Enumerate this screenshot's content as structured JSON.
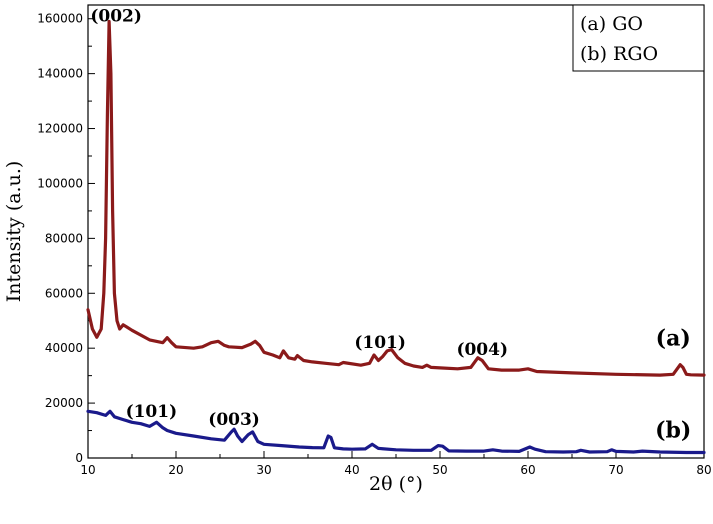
{
  "chart_data": {
    "type": "line",
    "xlabel": "2θ (°)",
    "ylabel": "Intensity (a.u.)",
    "xlim": [
      10,
      80
    ],
    "ylim": [
      0,
      165000
    ],
    "xticks": [
      10,
      20,
      30,
      40,
      50,
      60,
      70,
      80
    ],
    "yticks": [
      0,
      20000,
      40000,
      60000,
      80000,
      100000,
      120000,
      140000,
      160000
    ],
    "grid": false,
    "legend_position": "top-right",
    "legend": [
      "(a) GO",
      "(b) RGO"
    ],
    "series": [
      {
        "name": "(a) GO",
        "color": "#8b1a1a",
        "x": [
          10,
          10.5,
          11,
          11.5,
          11.8,
          12.0,
          12.2,
          12.4,
          12.6,
          12.8,
          13.0,
          13.3,
          13.6,
          14,
          15,
          17,
          18.5,
          19,
          19.5,
          20,
          22,
          23,
          24,
          24.8,
          25.5,
          26,
          27.5,
          28.5,
          29,
          29.5,
          30,
          31,
          31.8,
          32.2,
          32.8,
          33.5,
          33.8,
          34.5,
          35.5,
          37,
          38.5,
          39,
          41,
          42,
          42.5,
          43,
          43.5,
          44,
          44.5,
          45.2,
          46,
          47,
          48,
          48.5,
          49,
          50,
          52,
          53.5,
          54.3,
          54.8,
          55.5,
          57,
          59,
          60,
          61,
          65,
          70,
          75,
          76.5,
          77.3,
          77.6,
          78,
          78.5,
          80
        ],
        "y": [
          54000,
          47000,
          44000,
          47000,
          60000,
          80000,
          125000,
          159000,
          140000,
          90000,
          60000,
          50000,
          47000,
          48500,
          46500,
          43000,
          42000,
          43800,
          42000,
          40500,
          40000,
          40500,
          42000,
          42500,
          41000,
          40500,
          40200,
          41500,
          42500,
          41000,
          38500,
          37500,
          36500,
          39000,
          36500,
          36000,
          37300,
          35500,
          35000,
          34500,
          34000,
          34800,
          33800,
          34500,
          37500,
          35500,
          37000,
          39000,
          39500,
          36500,
          34500,
          33500,
          33000,
          33800,
          33000,
          32800,
          32500,
          33000,
          36500,
          35500,
          32500,
          32000,
          32000,
          32500,
          31500,
          31000,
          30500,
          30200,
          30500,
          34000,
          33000,
          30500,
          30300,
          30200
        ]
      },
      {
        "name": "(b) RGO",
        "color": "#1a1a8b",
        "x": [
          10,
          11,
          12,
          12.5,
          13,
          14,
          15,
          16,
          17,
          17.8,
          18.5,
          19,
          20,
          22,
          24,
          25.5,
          26.3,
          26.6,
          27,
          27.5,
          28.2,
          28.7,
          29.3,
          30,
          32,
          34,
          35.5,
          36.8,
          37.3,
          37.6,
          38,
          39,
          40,
          41.5,
          42.3,
          43,
          45,
          47,
          49,
          49.8,
          50.3,
          51,
          53,
          55,
          56,
          57,
          59,
          60.2,
          60.8,
          62,
          64,
          65.5,
          66,
          67,
          69,
          69.5,
          70,
          72,
          73,
          75,
          78,
          80
        ],
        "y": [
          17000,
          16500,
          15500,
          17000,
          15000,
          14000,
          13000,
          12500,
          11500,
          13000,
          11000,
          10000,
          9000,
          8000,
          7000,
          6500,
          9500,
          10500,
          8000,
          6000,
          8500,
          9500,
          6000,
          5000,
          4500,
          4000,
          3800,
          3700,
          8000,
          7500,
          3700,
          3300,
          3200,
          3300,
          5000,
          3500,
          3000,
          2800,
          2800,
          4500,
          4300,
          2600,
          2500,
          2500,
          3000,
          2500,
          2400,
          4000,
          3200,
          2300,
          2200,
          2300,
          2800,
          2200,
          2300,
          3000,
          2400,
          2200,
          2500,
          2200,
          2000,
          2000
        ]
      }
    ],
    "annotations": [
      {
        "text": "(002)",
        "x": 13.2,
        "y": 159000
      },
      {
        "text": "(101)",
        "x": 43.2,
        "y": 40000
      },
      {
        "text": "(004)",
        "x": 54.8,
        "y": 37500
      },
      {
        "text": "(101)",
        "x": 17.2,
        "y": 15000
      },
      {
        "text": "(003)",
        "x": 26.6,
        "y": 12000
      }
    ],
    "curve_labels": [
      {
        "text": "(a)",
        "x": 76.5,
        "y": 41000
      },
      {
        "text": "(b)",
        "x": 76.5,
        "y": 7500
      }
    ]
  }
}
